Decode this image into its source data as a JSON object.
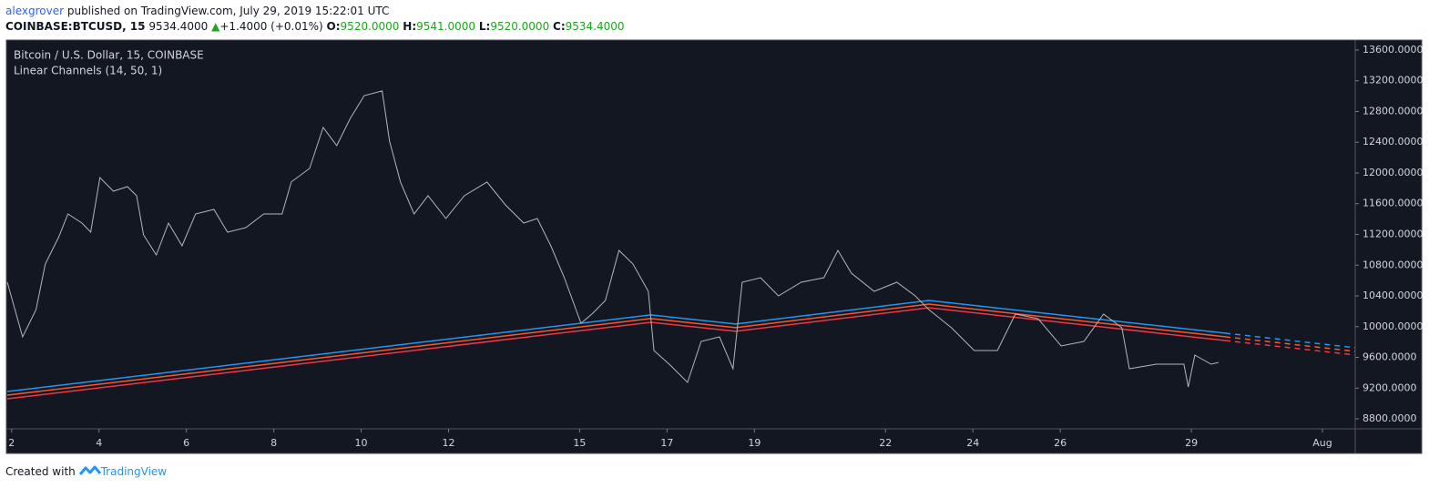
{
  "header": {
    "author": "alexgrover",
    "published": "published on TradingView.com, July 29, 2019 15:22:01 UTC"
  },
  "quote": {
    "symbol": "COINBASE:BTCUSD, 15",
    "last": "9534.4000",
    "change": "+1.4000 (+0.01%)",
    "ohlc": [
      {
        "label": "O:",
        "value": "9520.0000"
      },
      {
        "label": "H:",
        "value": "9541.0000"
      },
      {
        "label": "L:",
        "value": "9520.0000"
      },
      {
        "label": "C:",
        "value": "9534.4000"
      }
    ]
  },
  "chart_data": {
    "type": "line",
    "title": "Bitcoin / U.S. Dollar, 15, COINBASE",
    "indicator": "Linear Channels (14, 50, 1)",
    "x": [
      1.9,
      2.25,
      2.56,
      2.77,
      3.08,
      3.29,
      3.61,
      3.81,
      4.02,
      4.33,
      4.65,
      4.86,
      5.02,
      5.31,
      5.59,
      5.9,
      6.21,
      6.63,
      6.94,
      7.36,
      7.77,
      8.19,
      8.4,
      8.82,
      9.13,
      9.44,
      9.75,
      10.07,
      10.48,
      10.65,
      10.9,
      11.21,
      11.53,
      11.94,
      12.36,
      12.88,
      13.3,
      13.72,
      14.03,
      14.34,
      14.65,
      15.03,
      15.28,
      15.59,
      15.9,
      16.22,
      16.57,
      16.7,
      17.05,
      17.47,
      17.78,
      18.2,
      18.51,
      18.72,
      19.14,
      19.55,
      20.07,
      20.59,
      20.91,
      21.22,
      21.74,
      22.26,
      22.68,
      22.99,
      23.51,
      24.03,
      24.56,
      24.97,
      25.49,
      26.02,
      26.54,
      26.99,
      27.41,
      27.58,
      28.2,
      28.83,
      28.93,
      29.08,
      29.45,
      29.62
    ],
    "series": [
      {
        "color": "#b2b5be",
        "values": [
          10578,
          9867,
          10222,
          10815,
          11170,
          11467,
          11348,
          11230,
          11941,
          11763,
          11822,
          11704,
          11194,
          10933,
          11348,
          11052,
          11467,
          11526,
          11230,
          11289,
          11467,
          11467,
          11882,
          12059,
          12593,
          12356,
          12711,
          13007,
          13067,
          12415,
          11882,
          11467,
          11704,
          11407,
          11704,
          11882,
          11585,
          11348,
          11407,
          11052,
          10637,
          10045,
          10163,
          10341,
          10993,
          10815,
          10459,
          9689,
          9511,
          9274,
          9808,
          9867,
          9452,
          10578,
          10637,
          10400,
          10578,
          10637,
          10993,
          10696,
          10459,
          10578,
          10400,
          10222,
          9985,
          9689,
          9689,
          10163,
          10104,
          9748,
          9808,
          10163,
          9985,
          9452,
          9511,
          9511,
          9215,
          9630,
          9511,
          9534
        ]
      }
    ],
    "channels": [
      {
        "color": "#2196f3",
        "x": [
          1.9,
          16.63,
          18.57,
          22.99,
          29.77,
          32.75
        ],
        "values": [
          9156,
          10152,
          10034,
          10341,
          9915,
          9726
        ],
        "dash_start": 4
      },
      {
        "color": "#ff5722",
        "x": [
          1.9,
          16.63,
          18.57,
          22.99,
          29.77,
          32.75
        ],
        "values": [
          9109,
          10105,
          9987,
          10294,
          9868,
          9679
        ],
        "dash_start": 4
      },
      {
        "color": "#f23645",
        "x": [
          1.9,
          16.63,
          18.57,
          22.99,
          29.77,
          32.75
        ],
        "values": [
          9061,
          10057,
          9939,
          10246,
          9820,
          9631
        ],
        "dash_start": 4
      }
    ],
    "xlim": [
      1.88,
      32.75
    ],
    "xticks": [
      2,
      4,
      6,
      8,
      10,
      12,
      15,
      17,
      19,
      22,
      24,
      26,
      29,
      {
        "value": 32,
        "label": "Aug"
      }
    ],
    "ylim": [
      8670,
      13730
    ],
    "yticks": [
      {
        "value": 8800,
        "label": "8800.0000"
      },
      {
        "value": 9200,
        "label": "9200.0000"
      },
      {
        "value": 9600,
        "label": "9600.0000"
      },
      {
        "value": 10000,
        "label": "10000.0000"
      },
      {
        "value": 10400,
        "label": "10400.0000"
      },
      {
        "value": 10800,
        "label": "10800.0000"
      },
      {
        "value": 11200,
        "label": "11200.0000"
      },
      {
        "value": 11600,
        "label": "11600.0000"
      },
      {
        "value": 12000,
        "label": "12000.0000"
      },
      {
        "value": 12400,
        "label": "12400.0000"
      },
      {
        "value": 12800,
        "label": "12800.0000"
      },
      {
        "value": 13200,
        "label": "13200.0000"
      },
      {
        "value": 13600,
        "label": "13600.0000"
      }
    ],
    "grid": false
  },
  "footer": {
    "prefix": "Created with",
    "brand": "TradingView"
  }
}
